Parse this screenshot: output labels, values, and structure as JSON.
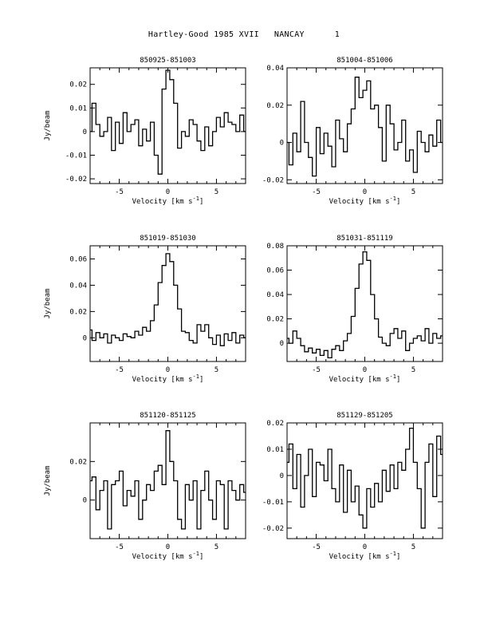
{
  "title": "Hartley-Good 1985 XVII   NANCAY      1",
  "ylabel": "Jy/beam",
  "xlabel": "Velocity [km s",
  "xlabel_sup": "-1",
  "xlabel_end": "]",
  "chart_data": [
    {
      "type": "line",
      "title": "850925-851003",
      "xlim": [
        -8,
        8
      ],
      "ylim": [
        -0.022,
        0.027
      ],
      "xticks": [
        -5,
        0,
        5
      ],
      "yticks": [
        -0.02,
        -0.01,
        0,
        0.01,
        0.02
      ],
      "ytick_labels": [
        "-0.02",
        "-0.01",
        "0",
        "0.01",
        "0.02"
      ],
      "x": [
        -8,
        -7.6,
        -7.2,
        -6.8,
        -6.4,
        -6,
        -5.6,
        -5.2,
        -4.8,
        -4.4,
        -4,
        -3.6,
        -3.2,
        -2.8,
        -2.4,
        -2,
        -1.6,
        -1.2,
        -0.8,
        -0.4,
        0,
        0.4,
        0.8,
        1.2,
        1.6,
        2,
        2.4,
        2.8,
        3.2,
        3.6,
        4,
        4.4,
        4.8,
        5.2,
        5.6,
        6,
        6.4,
        6.8,
        7.2,
        7.6,
        8
      ],
      "y": [
        0.0,
        0.012,
        0.003,
        -0.002,
        0.0,
        0.006,
        -0.008,
        0.004,
        -0.005,
        0.008,
        0.0,
        0.003,
        0.005,
        -0.006,
        0.001,
        -0.004,
        0.004,
        -0.01,
        -0.018,
        0.018,
        0.026,
        0.022,
        0.012,
        -0.007,
        0.0,
        -0.002,
        0.005,
        0.003,
        -0.004,
        -0.008,
        0.002,
        -0.006,
        0.0,
        0.006,
        0.002,
        0.008,
        0.004,
        0.003,
        0.0,
        0.007,
        0.0
      ]
    },
    {
      "type": "line",
      "title": "851004-851006",
      "xlim": [
        -8,
        8
      ],
      "ylim": [
        -0.022,
        0.04
      ],
      "xticks": [
        -5,
        0,
        5
      ],
      "yticks": [
        -0.02,
        0,
        0.02,
        0.04
      ],
      "ytick_labels": [
        "-0.02",
        "0",
        "0.02",
        "0.04"
      ],
      "x": [
        -8,
        -7.6,
        -7.2,
        -6.8,
        -6.4,
        -6,
        -5.6,
        -5.2,
        -4.8,
        -4.4,
        -4,
        -3.6,
        -3.2,
        -2.8,
        -2.4,
        -2,
        -1.6,
        -1.2,
        -0.8,
        -0.4,
        0,
        0.4,
        0.8,
        1.2,
        1.6,
        2,
        2.4,
        2.8,
        3.2,
        3.6,
        4,
        4.4,
        4.8,
        5.2,
        5.6,
        6,
        6.4,
        6.8,
        7.2,
        7.6,
        8
      ],
      "y": [
        0.0,
        -0.012,
        0.005,
        -0.005,
        0.022,
        0.0,
        -0.008,
        -0.018,
        0.008,
        -0.006,
        0.005,
        -0.002,
        -0.013,
        0.012,
        0.002,
        -0.005,
        0.01,
        0.018,
        0.035,
        0.024,
        0.028,
        0.033,
        0.018,
        0.02,
        0.008,
        -0.01,
        0.02,
        0.01,
        -0.004,
        0.0,
        0.012,
        -0.01,
        -0.004,
        -0.016,
        0.006,
        0.0,
        -0.005,
        0.004,
        -0.002,
        0.012,
        0.0
      ]
    },
    {
      "type": "line",
      "title": "851019-851030",
      "xlim": [
        -8,
        8
      ],
      "ylim": [
        -0.018,
        0.07
      ],
      "xticks": [
        -5,
        0,
        5
      ],
      "yticks": [
        0,
        0.02,
        0.04,
        0.06
      ],
      "ytick_labels": [
        "0",
        "0.02",
        "0.04",
        "0.06"
      ],
      "x": [
        -8,
        -7.6,
        -7.2,
        -6.8,
        -6.4,
        -6,
        -5.6,
        -5.2,
        -4.8,
        -4.4,
        -4,
        -3.6,
        -3.2,
        -2.8,
        -2.4,
        -2,
        -1.6,
        -1.2,
        -0.8,
        -0.4,
        0,
        0.4,
        0.8,
        1.2,
        1.6,
        2,
        2.4,
        2.8,
        3.2,
        3.6,
        4,
        4.4,
        4.8,
        5.2,
        5.6,
        6,
        6.4,
        6.8,
        7.2,
        7.6,
        8
      ],
      "y": [
        0.006,
        -0.002,
        0.004,
        0.0,
        0.003,
        -0.004,
        0.002,
        0.0,
        -0.002,
        0.003,
        0.001,
        0.0,
        0.005,
        0.002,
        0.008,
        0.005,
        0.013,
        0.025,
        0.042,
        0.055,
        0.064,
        0.058,
        0.04,
        0.022,
        0.005,
        0.004,
        -0.002,
        -0.004,
        0.01,
        0.005,
        0.01,
        0.0,
        -0.005,
        0.002,
        -0.006,
        0.003,
        -0.002,
        0.004,
        -0.004,
        0.002,
        0.0
      ]
    },
    {
      "type": "line",
      "title": "851031-851119",
      "xlim": [
        -8,
        8
      ],
      "ylim": [
        -0.015,
        0.08
      ],
      "xticks": [
        -5,
        0,
        5
      ],
      "yticks": [
        0,
        0.02,
        0.04,
        0.06,
        0.08
      ],
      "ytick_labels": [
        "0",
        "0.02",
        "0.04",
        "0.06",
        "0.08"
      ],
      "x": [
        -8,
        -7.6,
        -7.2,
        -6.8,
        -6.4,
        -6,
        -5.6,
        -5.2,
        -4.8,
        -4.4,
        -4,
        -3.6,
        -3.2,
        -2.8,
        -2.4,
        -2,
        -1.6,
        -1.2,
        -0.8,
        -0.4,
        0,
        0.4,
        0.8,
        1.2,
        1.6,
        2,
        2.4,
        2.8,
        3.2,
        3.6,
        4,
        4.4,
        4.8,
        5.2,
        5.6,
        6,
        6.4,
        6.8,
        7.2,
        7.6,
        8
      ],
      "y": [
        0.004,
        0.0,
        0.01,
        0.004,
        -0.002,
        -0.007,
        -0.004,
        -0.008,
        -0.005,
        -0.01,
        -0.006,
        -0.012,
        -0.005,
        -0.002,
        -0.006,
        0.002,
        0.008,
        0.022,
        0.045,
        0.065,
        0.075,
        0.068,
        0.04,
        0.02,
        0.005,
        0.0,
        -0.002,
        0.008,
        0.012,
        0.004,
        0.01,
        -0.006,
        0.0,
        0.004,
        0.006,
        0.002,
        0.012,
        0.0,
        0.008,
        0.004,
        0.006
      ]
    },
    {
      "type": "line",
      "title": "851120-851125",
      "xlim": [
        -8,
        8
      ],
      "ylim": [
        -0.02,
        0.04
      ],
      "xticks": [
        -5,
        0,
        5
      ],
      "yticks": [
        0,
        0.02
      ],
      "ytick_labels": [
        "0",
        "0.02"
      ],
      "x": [
        -8,
        -7.6,
        -7.2,
        -6.8,
        -6.4,
        -6,
        -5.6,
        -5.2,
        -4.8,
        -4.4,
        -4,
        -3.6,
        -3.2,
        -2.8,
        -2.4,
        -2,
        -1.6,
        -1.2,
        -0.8,
        -0.4,
        0,
        0.4,
        0.8,
        1.2,
        1.6,
        2,
        2.4,
        2.8,
        3.2,
        3.6,
        4,
        4.4,
        4.8,
        5.2,
        5.6,
        6,
        6.4,
        6.8,
        7.2,
        7.6,
        8
      ],
      "y": [
        0.01,
        0.012,
        -0.005,
        0.005,
        0.01,
        -0.015,
        0.008,
        0.01,
        0.015,
        -0.003,
        0.005,
        0.002,
        0.01,
        -0.01,
        0.0,
        0.008,
        0.005,
        0.015,
        0.018,
        0.008,
        0.036,
        0.02,
        0.01,
        -0.01,
        -0.015,
        0.008,
        0.0,
        0.01,
        -0.015,
        0.005,
        0.015,
        0.0,
        -0.01,
        0.01,
        0.008,
        -0.015,
        0.01,
        0.005,
        0.0,
        0.008,
        0.004
      ]
    },
    {
      "type": "line",
      "title": "851129-851205",
      "xlim": [
        -8,
        8
      ],
      "ylim": [
        -0.024,
        0.02
      ],
      "xticks": [
        -5,
        0,
        5
      ],
      "yticks": [
        -0.02,
        -0.01,
        0,
        0.01,
        0.02
      ],
      "ytick_labels": [
        "-0.02",
        "-0.01",
        "0",
        "0.01",
        "0.02"
      ],
      "x": [
        -8,
        -7.6,
        -7.2,
        -6.8,
        -6.4,
        -6,
        -5.6,
        -5.2,
        -4.8,
        -4.4,
        -4,
        -3.6,
        -3.2,
        -2.8,
        -2.4,
        -2,
        -1.6,
        -1.2,
        -0.8,
        -0.4,
        0,
        0.4,
        0.8,
        1.2,
        1.6,
        2,
        2.4,
        2.8,
        3.2,
        3.6,
        4,
        4.4,
        4.8,
        5.2,
        5.6,
        6,
        6.4,
        6.8,
        7.2,
        7.6,
        8
      ],
      "y": [
        0.005,
        0.012,
        -0.005,
        0.008,
        -0.012,
        0.0,
        0.01,
        -0.008,
        0.005,
        0.004,
        -0.002,
        0.01,
        -0.005,
        -0.01,
        0.004,
        -0.014,
        0.002,
        -0.01,
        -0.004,
        -0.015,
        -0.02,
        -0.005,
        -0.012,
        -0.003,
        -0.01,
        0.002,
        -0.006,
        0.004,
        -0.005,
        0.005,
        0.002,
        0.01,
        0.018,
        0.005,
        -0.005,
        -0.02,
        0.005,
        0.012,
        -0.008,
        0.015,
        0.008
      ]
    }
  ]
}
